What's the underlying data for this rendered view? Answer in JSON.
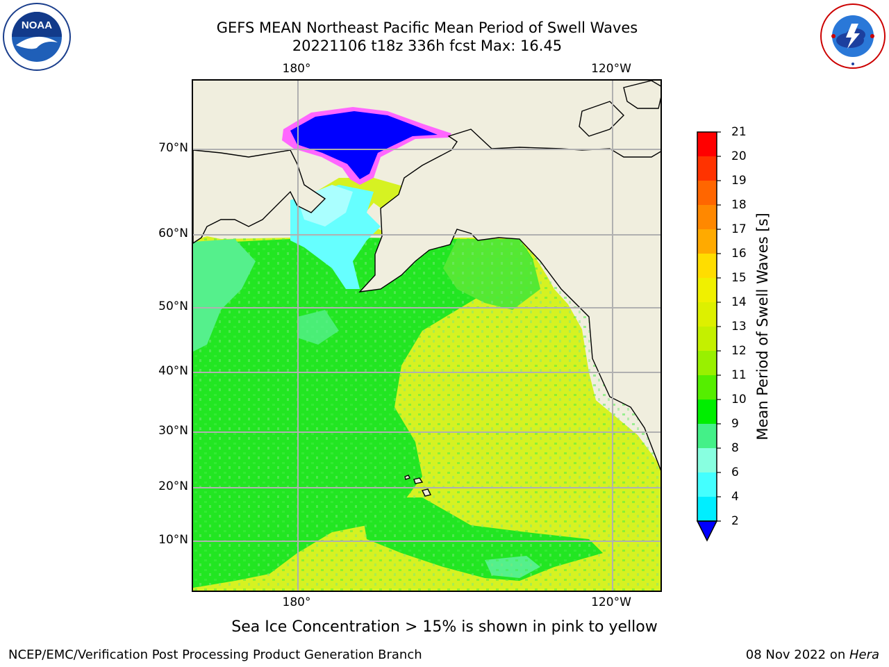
{
  "header": {
    "title_line1": "GEFS MEAN Northeast Pacific Mean Period of Swell Waves",
    "title_line2": "20221106 t18z 336h fcst   Max: 16.45"
  },
  "map": {
    "top_ticks": [
      "180°",
      "120°W"
    ],
    "bottom_ticks": [
      "180°",
      "120°W"
    ],
    "lat_ticks": [
      "70°N",
      "60°N",
      "50°N",
      "40°N",
      "30°N",
      "20°N",
      "10°N"
    ],
    "land_color": "#f0eede",
    "grid_color": "#b0b0b0"
  },
  "colorbar": {
    "title": "Mean Period of Swell Waves [s]",
    "labels": [
      "21",
      "20",
      "19",
      "18",
      "17",
      "16",
      "15",
      "14",
      "13",
      "12",
      "11",
      "10",
      "9",
      "8",
      "6",
      "4",
      "2"
    ],
    "colors": [
      "#ff0000",
      "#ff3300",
      "#ff6600",
      "#ff8800",
      "#ffaa00",
      "#ffdd00",
      "#f0f000",
      "#ddf000",
      "#c4f000",
      "#99f000",
      "#55ee00",
      "#00ee00",
      "#44f088",
      "#88ffe0",
      "#44ffff",
      "#00eeff",
      "#00ccff",
      "#0066ff"
    ],
    "extend_color": "#0000ff"
  },
  "footnote": "Sea Ice Concentration > 15% is shown in pink to yellow",
  "footer": {
    "left": "NCEP/EMC/Verification Post Processing Product Generation Branch",
    "right_prefix": "08 Nov 2022 on ",
    "right_italic": "Hera"
  }
}
